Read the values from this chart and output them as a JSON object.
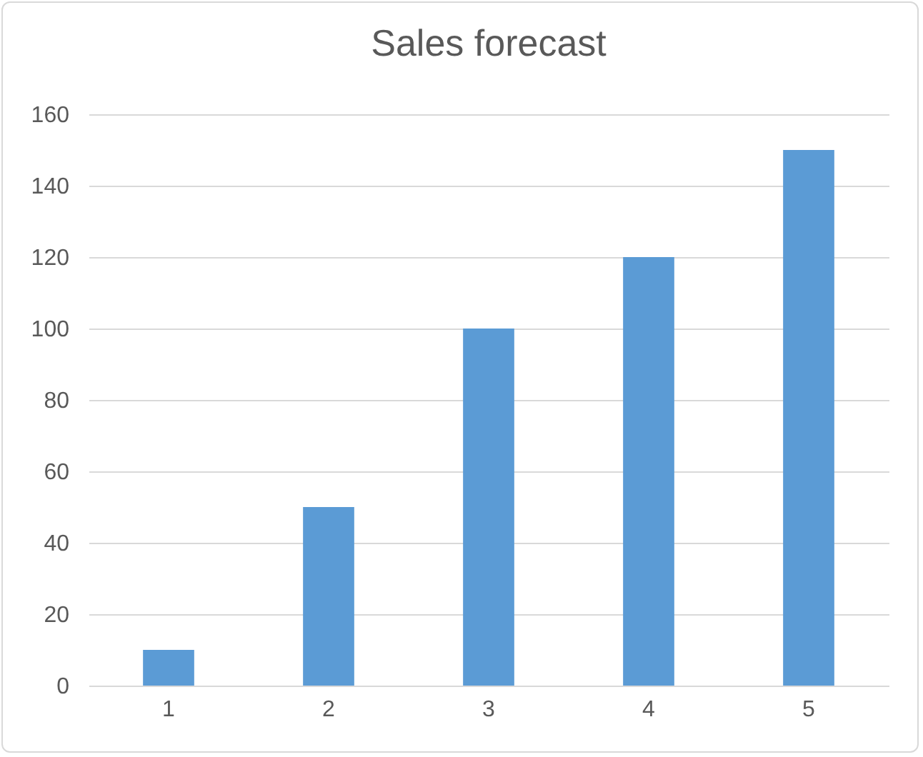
{
  "chart_data": {
    "type": "bar",
    "title": "Sales forecast",
    "categories": [
      "1",
      "2",
      "3",
      "4",
      "5"
    ],
    "values": [
      10,
      50,
      100,
      120,
      150
    ],
    "color": "#5b9bd5",
    "ylim": [
      0,
      160
    ],
    "yticks": [
      0,
      20,
      40,
      60,
      80,
      100,
      120,
      140,
      160
    ],
    "grid": "y"
  }
}
